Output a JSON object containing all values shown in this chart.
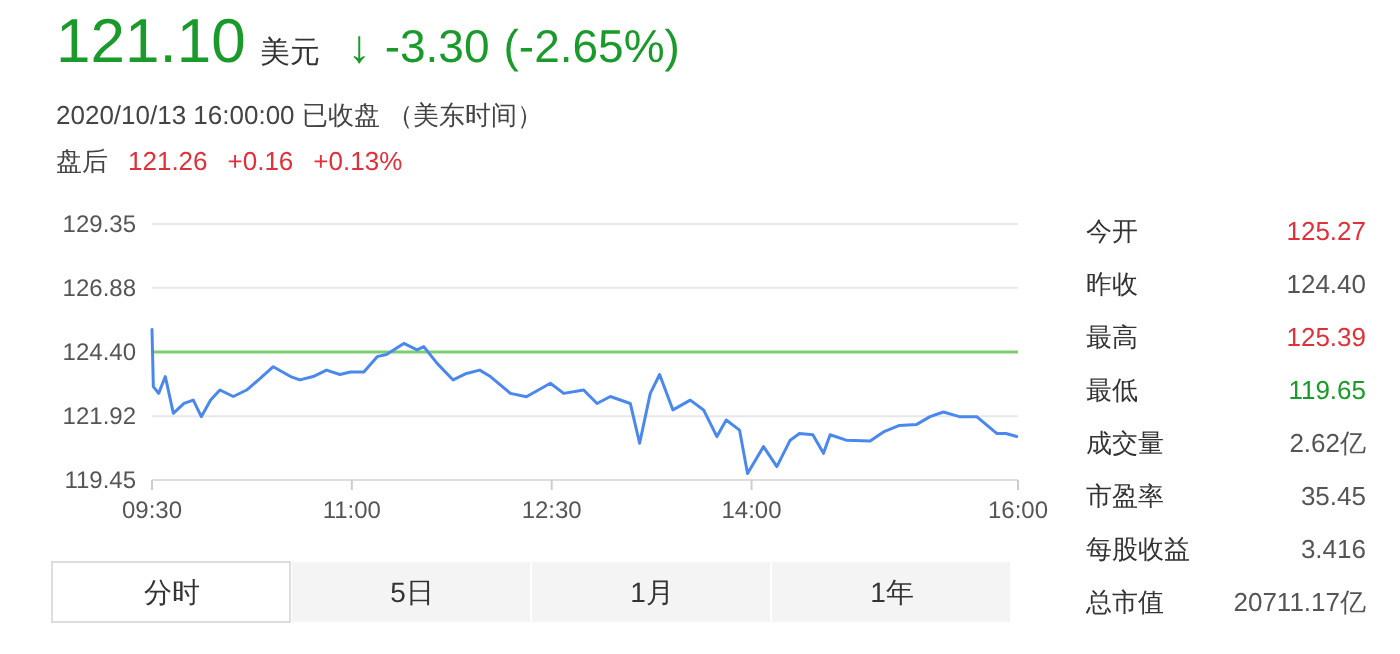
{
  "chart_data": {
    "type": "line",
    "title": "121.10 美元 ↓ -3.30 (-2.65%)",
    "subtitle": "2020/10/13 16:00:00 已收盘 （美东时间）",
    "annotations": [
      "盘后",
      "121.26",
      "+0.16",
      "+0.13%",
      "今开",
      "125.27",
      "昨收",
      "124.40",
      "最高",
      "125.39",
      "最低",
      "119.65",
      "成交量",
      "2.62亿",
      "市盈率",
      "35.45",
      "每股收益",
      "3.416",
      "总市值",
      "20711.17亿",
      "分时",
      "5日",
      "1月",
      "1年"
    ],
    "x": [
      9.5,
      9.51,
      9.55,
      9.6,
      9.66,
      9.74,
      9.81,
      9.87,
      9.94,
      10.01,
      10.11,
      10.21,
      10.31,
      10.41,
      10.54,
      10.61,
      10.71,
      10.81,
      10.91,
      10.99,
      11.09,
      11.19,
      11.26,
      11.39,
      11.49,
      11.54,
      11.64,
      11.76,
      11.86,
      11.96,
      12.04,
      12.19,
      12.31,
      12.49,
      12.59,
      12.74,
      12.84,
      12.94,
      13.09,
      13.16,
      13.24,
      13.31,
      13.41,
      13.54,
      13.64,
      13.74,
      13.81,
      13.91,
      13.97,
      14.09,
      14.19,
      14.29,
      14.36,
      14.46,
      14.54,
      14.59,
      14.71,
      14.89,
      14.99,
      15.11,
      15.24,
      15.34,
      15.44,
      15.56,
      15.69,
      15.84,
      15.91,
      15.99
    ],
    "series": [
      {
        "color": "#4a88ee",
        "values": [
          125.27,
          123.06,
          122.8,
          123.45,
          122.03,
          122.41,
          122.54,
          121.9,
          122.54,
          122.93,
          122.68,
          122.93,
          123.37,
          123.83,
          123.45,
          123.32,
          123.45,
          123.7,
          123.53,
          123.63,
          123.63,
          124.22,
          124.3,
          124.73,
          124.48,
          124.61,
          123.96,
          123.32,
          123.57,
          123.7,
          123.45,
          122.8,
          122.67,
          123.19,
          122.8,
          122.93,
          122.41,
          122.68,
          122.41,
          120.87,
          122.8,
          123.53,
          122.16,
          122.54,
          122.16,
          121.13,
          121.77,
          121.38,
          119.7,
          120.74,
          119.97,
          120.99,
          121.25,
          121.2,
          120.48,
          121.2,
          120.99,
          120.96,
          121.31,
          121.56,
          121.6,
          121.9,
          122.08,
          121.9,
          121.9,
          121.25,
          121.25,
          121.13
        ]
      }
    ],
    "xlim": [
      9.5,
      16
    ],
    "xticks": [
      {
        "value": 9.5,
        "label": "09:30"
      },
      {
        "value": 11,
        "label": "11:00"
      },
      {
        "value": 12.5,
        "label": "12:30"
      },
      {
        "value": 14,
        "label": "14:00"
      },
      {
        "value": 16,
        "label": "16:00"
      }
    ],
    "ylim": [
      119.45,
      129.35
    ],
    "yticks": [
      129.35,
      126.88,
      {
        "value": 124.4,
        "label": "124.40"
      },
      121.92,
      119.45
    ],
    "grid": "y",
    "ref_lines": [
      {
        "axis": "y",
        "value": 124.4,
        "color": "#7ccf6e"
      }
    ]
  }
}
